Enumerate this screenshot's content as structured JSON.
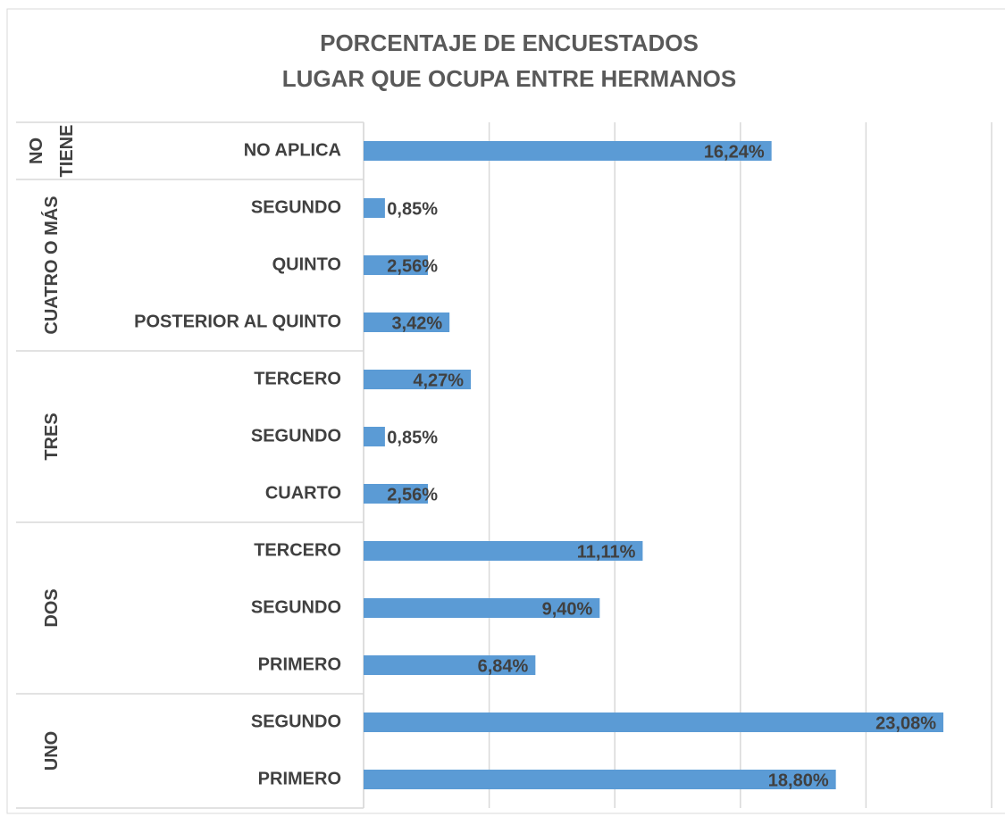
{
  "chart_data": {
    "type": "bar",
    "orientation": "horizontal",
    "title": [
      "PORCENTAJE DE ENCUESTADOS",
      "LUGAR QUE OCUPA ENTRE HERMANOS"
    ],
    "color": "#5b9bd5",
    "xlim": [
      0,
      25
    ],
    "xticks": [
      0,
      5,
      10,
      15,
      20,
      25
    ],
    "grid": true,
    "groups": [
      {
        "name": "NO TIENE",
        "categories": [
          "NO APLICA"
        ],
        "values": [
          16.24
        ],
        "value_labels": [
          "16,24%"
        ]
      },
      {
        "name": "CUATRO O MÁS",
        "categories": [
          "SEGUNDO",
          "QUINTO",
          "POSTERIOR AL QUINTO"
        ],
        "values": [
          0.85,
          2.56,
          3.42
        ],
        "value_labels": [
          "0,85%",
          "2,56%",
          "3,42%"
        ]
      },
      {
        "name": "TRES",
        "categories": [
          "TERCERO",
          "SEGUNDO",
          "CUARTO"
        ],
        "values": [
          4.27,
          0.85,
          2.56
        ],
        "value_labels": [
          "4,27%",
          "0,85%",
          "2,56%"
        ]
      },
      {
        "name": "DOS",
        "categories": [
          "TERCERO",
          "SEGUNDO",
          "PRIMERO"
        ],
        "values": [
          11.11,
          9.4,
          6.84
        ],
        "value_labels": [
          "11,11%",
          "9,40%",
          "6,84%"
        ]
      },
      {
        "name": "UNO",
        "categories": [
          "SEGUNDO",
          "PRIMERO"
        ],
        "values": [
          23.08,
          18.8
        ],
        "value_labels": [
          "23,08%",
          "18,80%"
        ]
      }
    ]
  }
}
